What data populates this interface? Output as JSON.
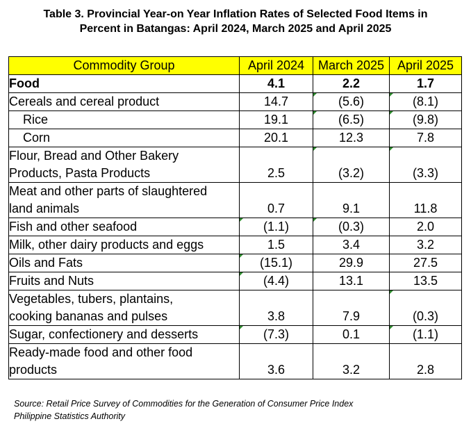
{
  "title": {
    "line1": "Table 3. Provincial Year-on Year Inflation Rates of Selected Food Items in",
    "line2": "Percent in Batangas: April 2024, March 2025 and April 2025"
  },
  "table": {
    "headers": [
      "Commodity Group",
      "April 2024",
      "March 2025",
      "April 2025"
    ],
    "rows": [
      {
        "name": [
          "Food"
        ],
        "values": [
          "4.1",
          "2.2",
          "1.7"
        ]
      },
      {
        "name": [
          "Cereals and cereal product"
        ],
        "values": [
          "14.7",
          "(5.6)",
          "(8.1)"
        ]
      },
      {
        "name": [
          "Rice"
        ],
        "values": [
          "19.1",
          "(6.5)",
          "(9.8)"
        ]
      },
      {
        "name": [
          "Corn"
        ],
        "values": [
          "20.1",
          "12.3",
          "7.8"
        ]
      },
      {
        "name": [
          "Flour, Bread and Other Bakery",
          "Products, Pasta Products"
        ],
        "values": [
          "2.5",
          "(3.2)",
          "(3.3)"
        ]
      },
      {
        "name": [
          "Meat and other parts of slaughtered",
          "land animals"
        ],
        "values": [
          "0.7",
          "9.1",
          "11.8"
        ]
      },
      {
        "name": [
          "Fish and other seafood"
        ],
        "values": [
          "(1.1)",
          "(0.3)",
          "2.0"
        ]
      },
      {
        "name": [
          "Milk, other dairy products and eggs"
        ],
        "values": [
          "1.5",
          "3.4",
          "3.2"
        ]
      },
      {
        "name": [
          "Oils and Fats"
        ],
        "values": [
          "(15.1)",
          "29.9",
          "27.5"
        ]
      },
      {
        "name": [
          "Fruits and Nuts"
        ],
        "values": [
          "(4.4)",
          "13.1",
          "13.5"
        ]
      },
      {
        "name": [
          "Vegetables, tubers, plantains,",
          "cooking bananas and pulses"
        ],
        "values": [
          "3.8",
          "7.9",
          "(0.3)"
        ]
      },
      {
        "name": [
          "Sugar, confectionery and desserts"
        ],
        "values": [
          "(7.3)",
          "0.1",
          "(1.1)"
        ]
      },
      {
        "name": [
          "Ready-made food and other food",
          "products"
        ],
        "values": [
          "3.6",
          "3.2",
          "2.8"
        ]
      }
    ]
  },
  "source": {
    "line1": "Source: Retail Price Survey of Commodities for the Generation of Consumer Price Index",
    "line2": "Philippine Statistics Authority"
  },
  "colors": {
    "header_fill": "#ffff00",
    "error_marker": "#2e8b2e"
  }
}
